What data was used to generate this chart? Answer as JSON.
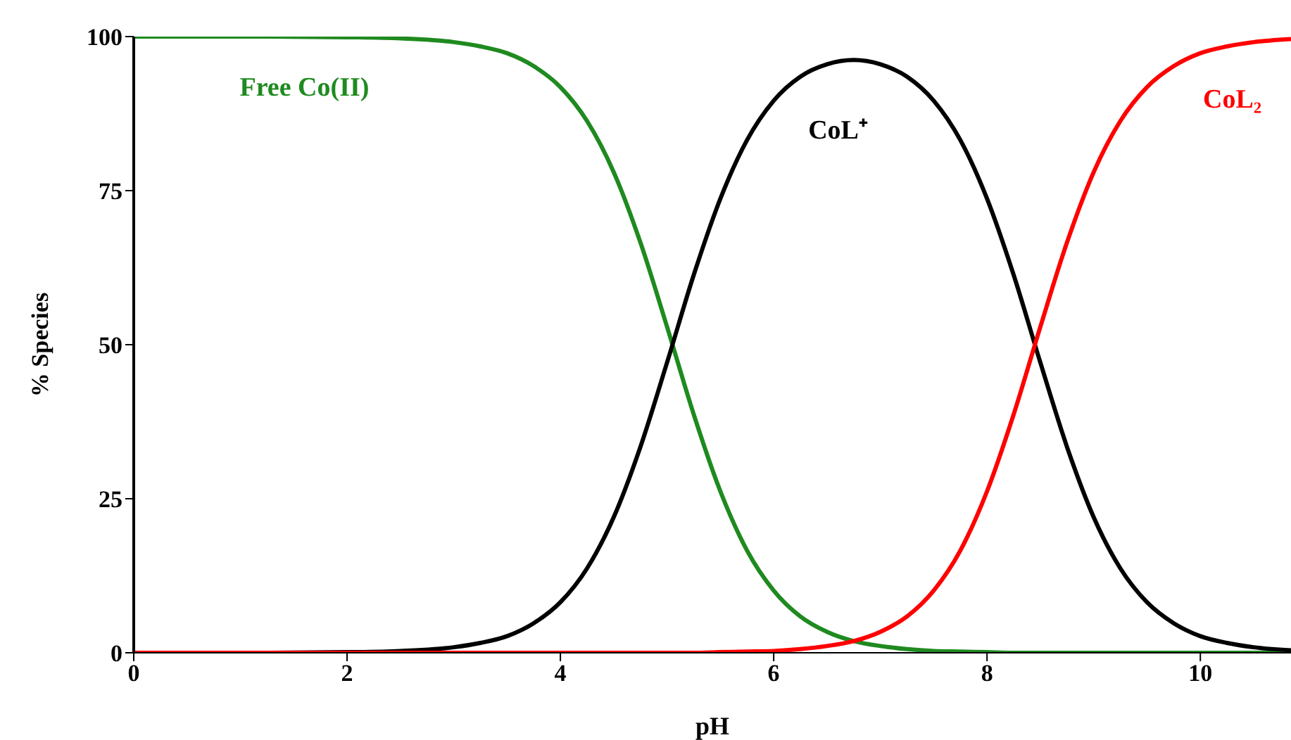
{
  "chart_data": {
    "type": "line",
    "xlabel": "pH",
    "ylabel": "% Species",
    "x": [
      0,
      1,
      2,
      2.5,
      3,
      3.25,
      3.5,
      3.75,
      4,
      4.25,
      4.5,
      4.75,
      5,
      5.25,
      5.5,
      5.75,
      6,
      6.25,
      6.5,
      6.75,
      7,
      7.25,
      7.5,
      7.75,
      8,
      8.25,
      8.5,
      8.75,
      9,
      9.25,
      9.5,
      9.75,
      10,
      10.25,
      10.5,
      10.85
    ],
    "series": [
      {
        "name": "Free Co(II)",
        "color": "#1f8a1f",
        "values": [
          100,
          100,
          99.9,
          99.7,
          99.1,
          98.4,
          97.3,
          95.2,
          91.8,
          86.3,
          78.0,
          66.6,
          52.9,
          38.7,
          26.2,
          16.6,
          10.1,
          5.9,
          3.4,
          1.9,
          1.1,
          0.6,
          0.3,
          0.2,
          0.1,
          0,
          0,
          0,
          0,
          0,
          0,
          0,
          0,
          0,
          0,
          0
        ]
      },
      {
        "name": "CoL⁺",
        "color": "#000000",
        "values": [
          0,
          0,
          0.1,
          0.3,
          0.9,
          1.6,
          2.7,
          4.8,
          8.2,
          13.7,
          22.0,
          33.4,
          47.1,
          61.3,
          73.7,
          83.2,
          89.6,
          93.5,
          95.5,
          96.2,
          95.5,
          93.5,
          89.6,
          83.2,
          73.7,
          61.3,
          47.1,
          33.4,
          22.0,
          13.7,
          8.2,
          4.8,
          2.7,
          1.6,
          0.9,
          0.4
        ]
      },
      {
        "name": "CoL₂",
        "color": "#ff0000",
        "values": [
          0,
          0,
          0,
          0,
          0,
          0,
          0,
          0,
          0,
          0,
          0,
          0,
          0,
          0,
          0.1,
          0.2,
          0.3,
          0.6,
          1.1,
          1.9,
          3.4,
          5.9,
          10.1,
          16.6,
          26.2,
          38.7,
          52.9,
          66.6,
          78.0,
          86.3,
          91.8,
          95.2,
          97.3,
          98.4,
          99.1,
          99.6
        ]
      }
    ],
    "xlim": [
      0,
      10.85
    ],
    "xticks": [
      0,
      2,
      4,
      6,
      8,
      10
    ],
    "ylim": [
      0,
      100
    ],
    "yticks": [
      0,
      25,
      50,
      75,
      100
    ],
    "grid": false,
    "legend": false,
    "marker": "none",
    "line_style": "solid"
  }
}
